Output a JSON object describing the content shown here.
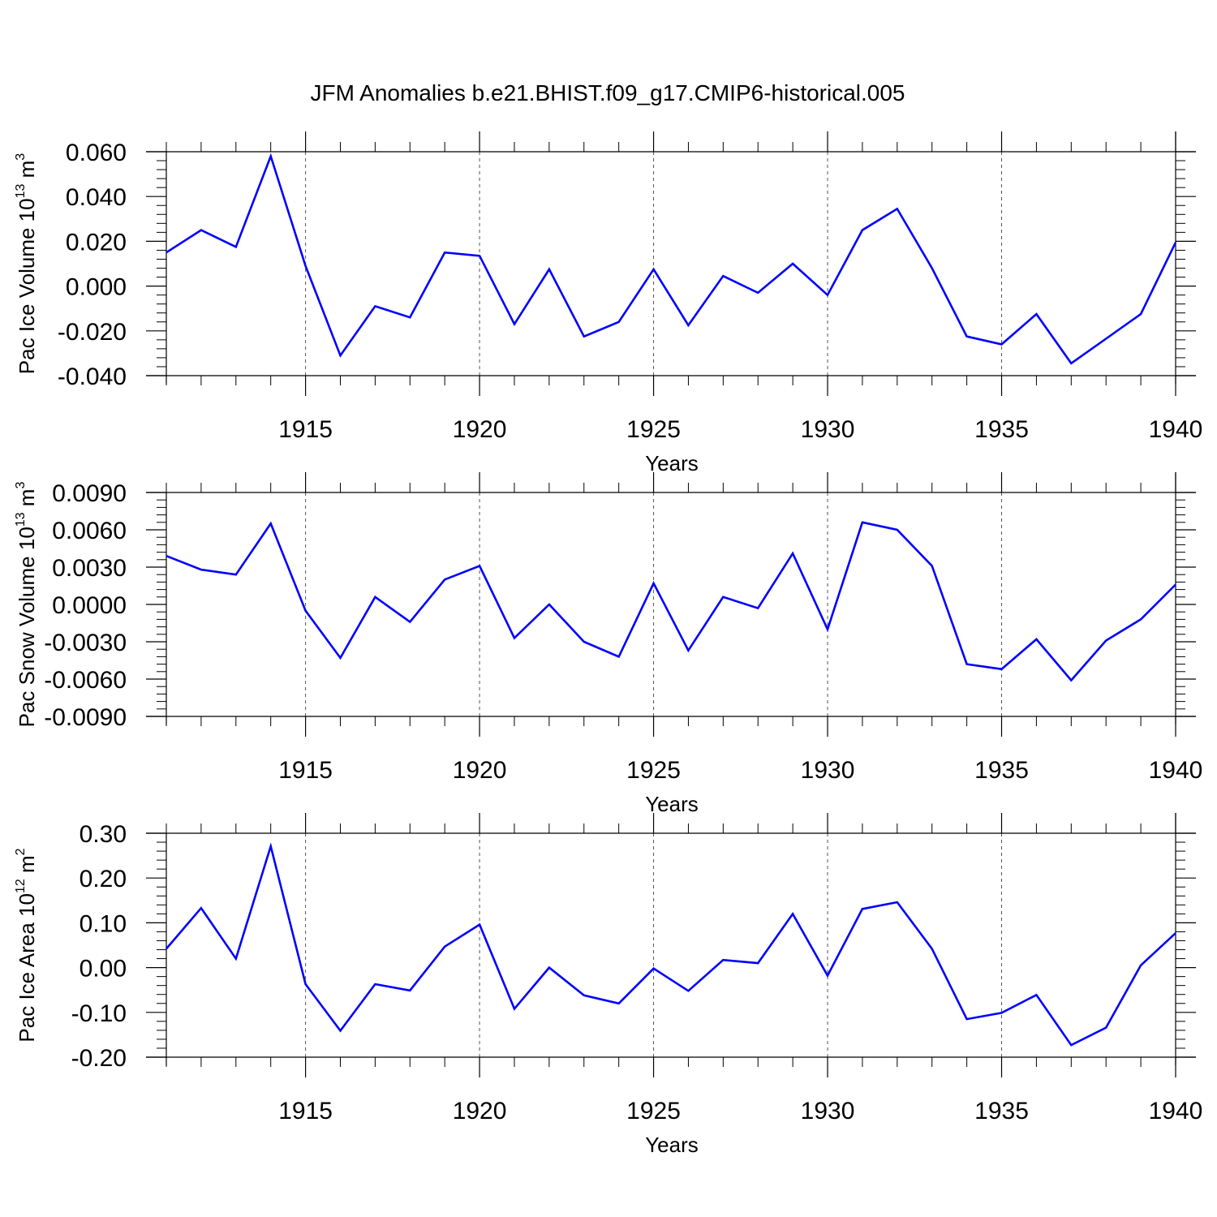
{
  "title": "JFM Anomalies b.e21.BHIST.f09_g17.CMIP6-historical.005",
  "line_color": "#0000ff",
  "chart_data": [
    {
      "type": "line",
      "ylabel": "Pac Ice Volume 10",
      "ylabel_exp": "13",
      "ylabel_unit": " m",
      "ylabel_unit_exp": "3",
      "xlabel": "Years",
      "xlim": [
        1911,
        1940
      ],
      "ylim": [
        -0.04,
        0.06
      ],
      "yticks": [
        -0.04,
        -0.02,
        0.0,
        0.02,
        0.04,
        0.06
      ],
      "ytick_labels": [
        "-0.040",
        "-0.020",
        "0.000",
        "0.020",
        "0.040",
        "0.060"
      ],
      "xticks": [
        1915,
        1920,
        1925,
        1930,
        1935,
        1940
      ],
      "xtick_labels": [
        "1915",
        "1920",
        "1925",
        "1930",
        "1935",
        "1940"
      ],
      "x": [
        1911,
        1912,
        1913,
        1914,
        1915,
        1916,
        1917,
        1918,
        1919,
        1920,
        1921,
        1922,
        1923,
        1924,
        1925,
        1926,
        1927,
        1928,
        1929,
        1930,
        1931,
        1932,
        1933,
        1934,
        1935,
        1936,
        1937,
        1938,
        1939,
        1940
      ],
      "series": [
        {
          "name": "Pac Ice Volume",
          "values": [
            0.015,
            0.025,
            0.0175,
            0.058,
            0.009,
            -0.031,
            -0.009,
            -0.014,
            0.015,
            0.0135,
            -0.017,
            0.0075,
            -0.0225,
            -0.016,
            0.0075,
            -0.0175,
            0.0045,
            -0.003,
            0.01,
            -0.004,
            0.025,
            0.0345,
            0.008,
            -0.0225,
            -0.026,
            -0.0125,
            -0.0345,
            -0.0235,
            -0.0125,
            0.0195
          ]
        }
      ]
    },
    {
      "type": "line",
      "ylabel": "Pac Snow Volume 10",
      "ylabel_exp": "13",
      "ylabel_unit": " m",
      "ylabel_unit_exp": "3",
      "xlabel": "Years",
      "xlim": [
        1911,
        1940
      ],
      "ylim": [
        -0.009,
        0.009
      ],
      "yticks": [
        -0.009,
        -0.006,
        -0.003,
        0.0,
        0.003,
        0.006,
        0.009
      ],
      "ytick_labels": [
        "-0.0090",
        "-0.0060",
        "-0.0030",
        "0.0000",
        "0.0030",
        "0.0060",
        "0.0090"
      ],
      "xticks": [
        1915,
        1920,
        1925,
        1930,
        1935,
        1940
      ],
      "xtick_labels": [
        "1915",
        "1920",
        "1925",
        "1930",
        "1935",
        "1940"
      ],
      "x": [
        1911,
        1912,
        1913,
        1914,
        1915,
        1916,
        1917,
        1918,
        1919,
        1920,
        1921,
        1922,
        1923,
        1924,
        1925,
        1926,
        1927,
        1928,
        1929,
        1930,
        1931,
        1932,
        1933,
        1934,
        1935,
        1936,
        1937,
        1938,
        1939,
        1940
      ],
      "series": [
        {
          "name": "Pac Snow Volume",
          "values": [
            0.0039,
            0.0028,
            0.0024,
            0.0065,
            -0.0005,
            -0.0043,
            0.0006,
            -0.0014,
            0.002,
            0.0031,
            -0.0027,
            0.0,
            -0.003,
            -0.0042,
            0.0017,
            -0.0037,
            0.0006,
            -0.0003,
            0.0041,
            -0.002,
            0.0066,
            0.006,
            0.0031,
            -0.0048,
            -0.0052,
            -0.0028,
            -0.0061,
            -0.0029,
            -0.0012,
            0.0016
          ]
        }
      ]
    },
    {
      "type": "line",
      "ylabel": "Pac Ice Area 10",
      "ylabel_exp": "12",
      "ylabel_unit": " m",
      "ylabel_unit_exp": "2",
      "xlabel": "Years",
      "xlim": [
        1911,
        1940
      ],
      "ylim": [
        -0.2,
        0.3
      ],
      "yticks": [
        -0.2,
        -0.1,
        0.0,
        0.1,
        0.2,
        0.3
      ],
      "ytick_labels": [
        "-0.20",
        "-0.10",
        "0.00",
        "0.10",
        "0.20",
        "0.30"
      ],
      "xticks": [
        1915,
        1920,
        1925,
        1930,
        1935,
        1940
      ],
      "xtick_labels": [
        "1915",
        "1920",
        "1925",
        "1930",
        "1935",
        "1940"
      ],
      "x": [
        1911,
        1912,
        1913,
        1914,
        1915,
        1916,
        1917,
        1918,
        1919,
        1920,
        1921,
        1922,
        1923,
        1924,
        1925,
        1926,
        1927,
        1928,
        1929,
        1930,
        1931,
        1932,
        1933,
        1934,
        1935,
        1936,
        1937,
        1938,
        1939,
        1940
      ],
      "series": [
        {
          "name": "Pac Ice Area",
          "values": [
            0.042,
            0.133,
            0.02,
            0.271,
            -0.037,
            -0.141,
            -0.037,
            -0.051,
            0.047,
            0.096,
            -0.092,
            0.0,
            -0.062,
            -0.08,
            -0.002,
            -0.052,
            0.017,
            0.01,
            0.12,
            -0.018,
            0.131,
            0.146,
            0.042,
            -0.115,
            -0.101,
            -0.061,
            -0.173,
            -0.134,
            0.005,
            0.077
          ]
        }
      ]
    }
  ]
}
